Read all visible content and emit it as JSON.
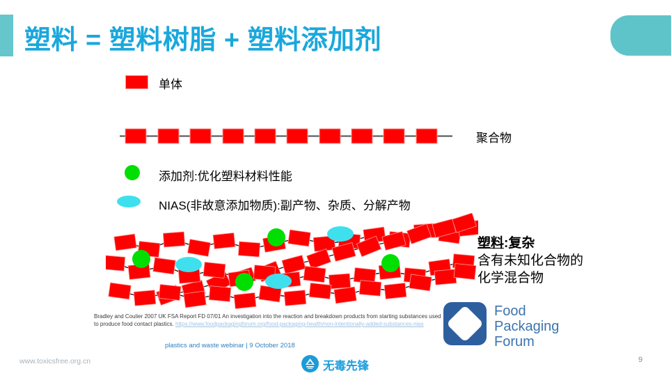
{
  "slide": {
    "title": "塑料 = 塑料树脂 + 塑料添加剂",
    "page_number": "9"
  },
  "legend": {
    "monomer_label": "单体",
    "polymer_label": "聚合物",
    "additive_label": "添加剂:优化塑料材料性能",
    "nias_label": "NIAS(非故意添加物质):副产物、杂质、分解产物"
  },
  "plastic_note": {
    "heading_underlined": "塑料",
    "heading_rest": ":复杂",
    "line2": "含有未知化合物的",
    "line3": "化学混合物"
  },
  "citation": {
    "text": "Bradley and Coulier 2007 UK FSA Report FD 07/01 An investigation into the reaction and breakdown products from starting substances used to produce food contact plastics. ",
    "link": "https://www.foodpackagingforum.org/food-packaging-health/non-intentionally-added-substances-nias",
    "webinar": "plastics and waste webinar | 9 October 2018"
  },
  "fpf_logo": {
    "line1": "Food",
    "line2": "Packaging",
    "line3": "Forum"
  },
  "footer": {
    "website": "www.toxicsfree.org.cn",
    "org_name": "无毒先锋"
  },
  "colors": {
    "title_blue": "#1aa8dc",
    "teal_accent": "#65c6cb",
    "monomer_red": "#ff0000",
    "additive_green": "#00df00",
    "nias_cyan": "#3fe0ee",
    "fpf_blue": "#2d5f9f",
    "link_blue": "#9dc3e6",
    "webinar_blue": "#2e7fbf",
    "footer_logo_blue": "#1b9cd8"
  }
}
